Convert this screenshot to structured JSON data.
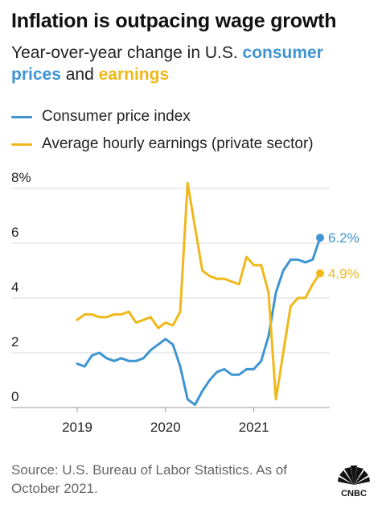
{
  "header": {
    "title": "Inflation is outpacing wage growth",
    "subtitle_prefix": "Year-over-year change in U.S. ",
    "subtitle_cpi": "consumer prices",
    "subtitle_mid": " and ",
    "subtitle_earn": "earnings"
  },
  "footer": {
    "source": "Source: U.S. Bureau of Labor Statistics. As of October 2021.",
    "logo_text": "CNBC"
  },
  "colors": {
    "cpi": "#3e95d1",
    "earnings": "#efb81b",
    "grid": "#d9d9d9",
    "axis_text": "#222222"
  },
  "chart_data": {
    "type": "line",
    "title": "Inflation is outpacing wage growth",
    "subtitle": "Year-over-year change in U.S. consumer prices and earnings",
    "legend": [
      "Consumer price index",
      "Average hourly earnings (private sector)"
    ],
    "legend_position": "top-left",
    "grid": true,
    "x_ticks": [
      "2019",
      "2020",
      "2021"
    ],
    "y_ticks": [
      "0",
      "2",
      "4",
      "6",
      "8%"
    ],
    "ylim": [
      0,
      8
    ],
    "x": [
      "2019-01",
      "2019-02",
      "2019-03",
      "2019-04",
      "2019-05",
      "2019-06",
      "2019-07",
      "2019-08",
      "2019-09",
      "2019-10",
      "2019-11",
      "2019-12",
      "2020-01",
      "2020-02",
      "2020-03",
      "2020-04",
      "2020-05",
      "2020-06",
      "2020-07",
      "2020-08",
      "2020-09",
      "2020-10",
      "2020-11",
      "2020-12",
      "2021-01",
      "2021-02",
      "2021-03",
      "2021-04",
      "2021-05",
      "2021-06",
      "2021-07",
      "2021-08",
      "2021-09",
      "2021-10"
    ],
    "series": [
      {
        "name": "Consumer price index",
        "color": "#3e95d1",
        "end_label": "6.2%",
        "values": [
          1.6,
          1.5,
          1.9,
          2.0,
          1.8,
          1.7,
          1.8,
          1.7,
          1.7,
          1.8,
          2.1,
          2.3,
          2.5,
          2.3,
          1.5,
          0.3,
          0.1,
          0.6,
          1.0,
          1.3,
          1.4,
          1.2,
          1.2,
          1.4,
          1.4,
          1.7,
          2.6,
          4.2,
          5.0,
          5.4,
          5.4,
          5.3,
          5.4,
          6.2
        ]
      },
      {
        "name": "Average hourly earnings (private sector)",
        "color": "#efb81b",
        "end_label": "4.9%",
        "values": [
          3.2,
          3.4,
          3.4,
          3.3,
          3.3,
          3.4,
          3.4,
          3.5,
          3.1,
          3.2,
          3.3,
          2.9,
          3.1,
          3.0,
          3.5,
          8.2,
          6.6,
          5.0,
          4.8,
          4.7,
          4.7,
          4.6,
          4.5,
          5.5,
          5.2,
          5.2,
          4.2,
          0.3,
          2.0,
          3.7,
          4.0,
          4.0,
          4.5,
          4.9
        ]
      }
    ]
  }
}
